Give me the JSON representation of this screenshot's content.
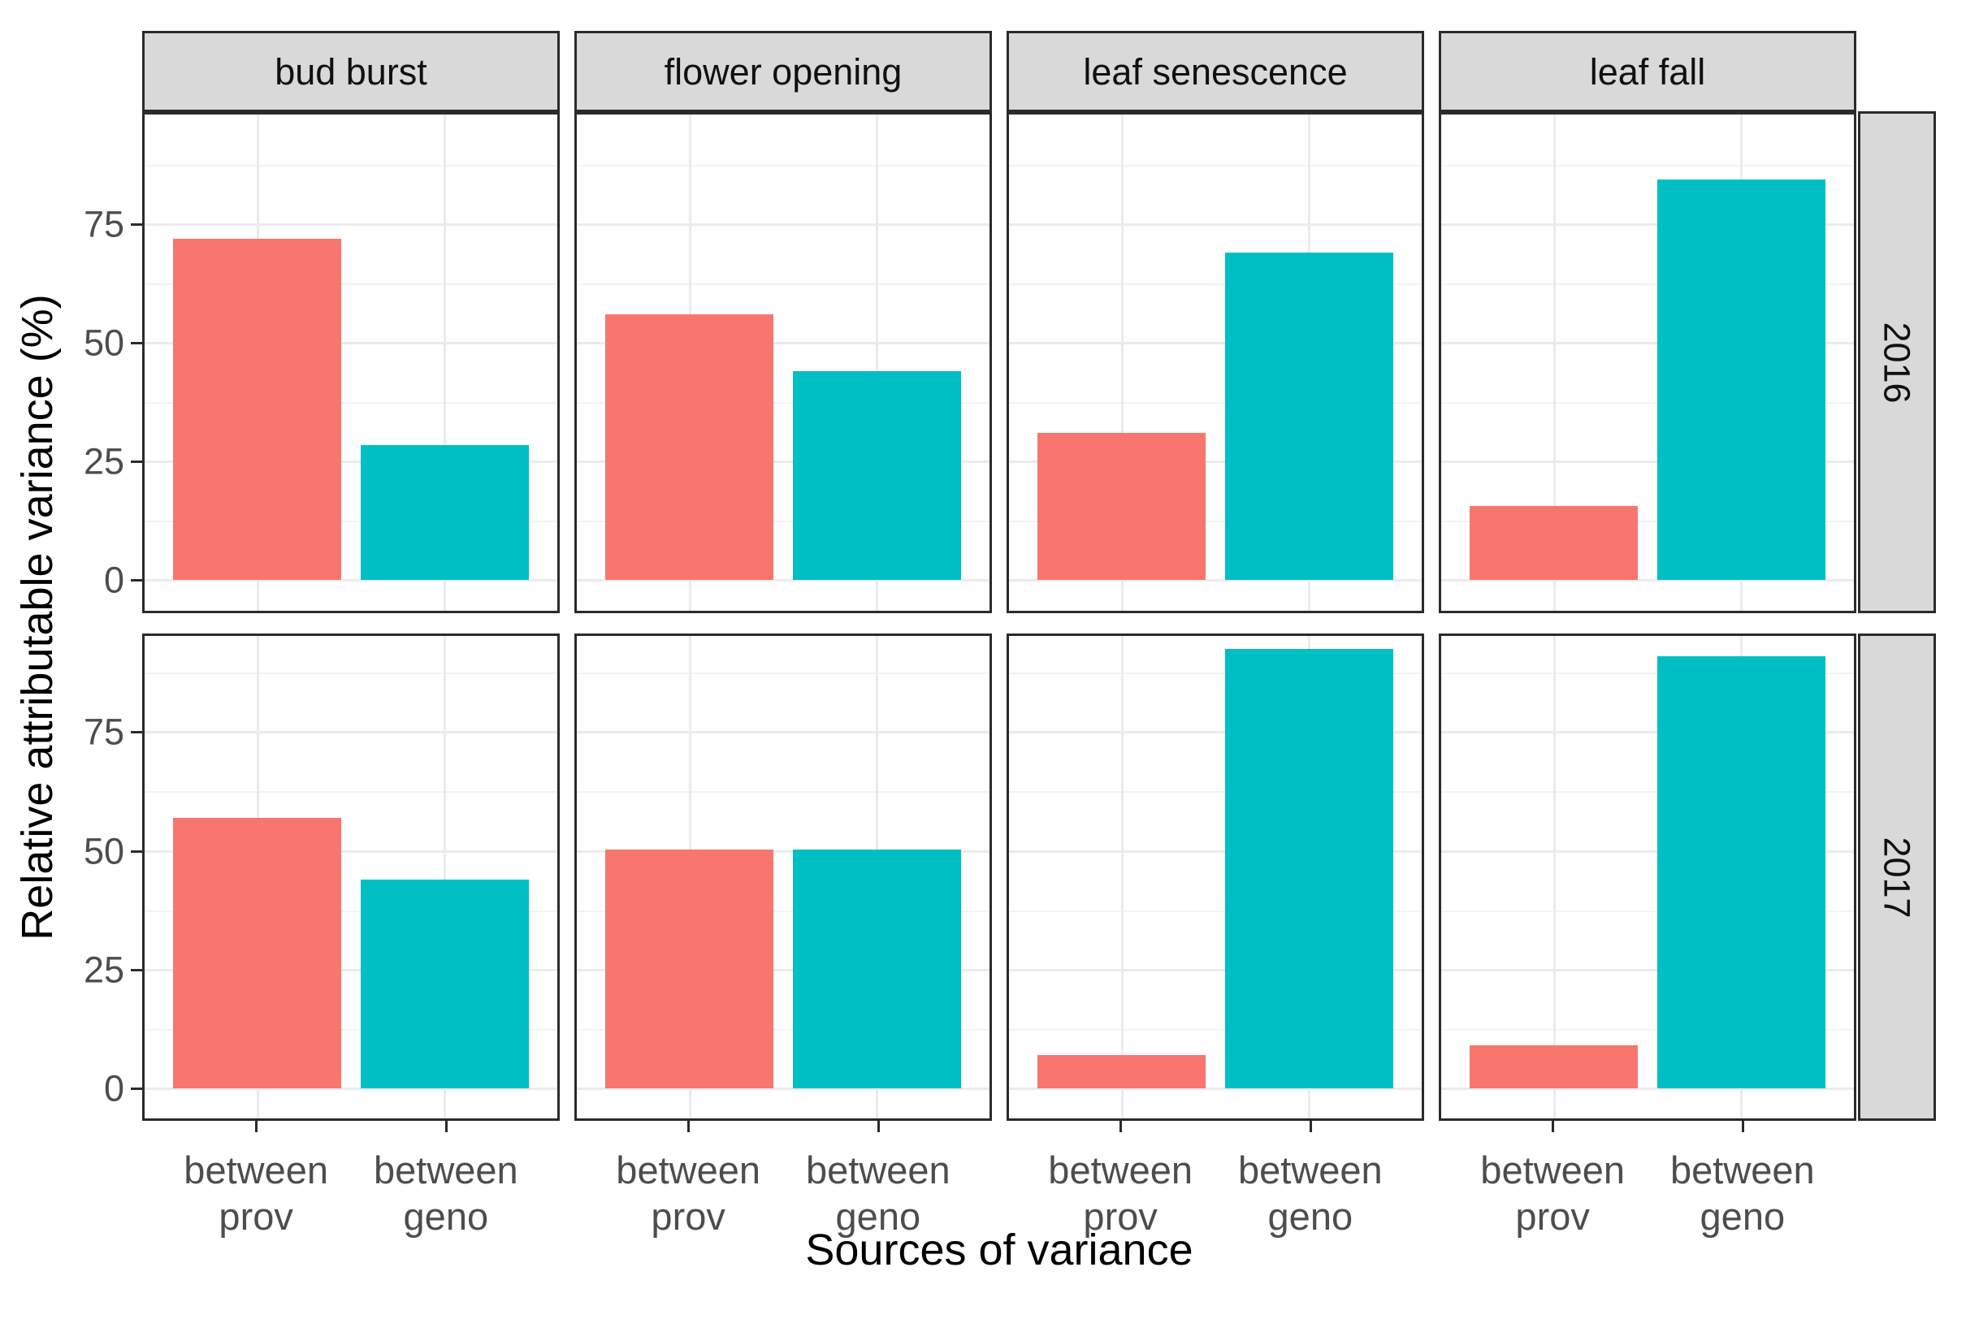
{
  "figure": {
    "x_axis_title": "Sources of variance",
    "y_axis_title": "Relative attributable variance (%)"
  },
  "chart_data": {
    "type": "bar",
    "title": "",
    "xlabel": "Sources of variance",
    "ylabel": "Relative attributable variance (%)",
    "facet_columns": [
      "bud burst",
      "flower opening",
      "leaf senescence",
      "leaf fall"
    ],
    "facet_rows": [
      "2016",
      "2017"
    ],
    "categories": [
      "between prov",
      "between geno"
    ],
    "category_label_lines": [
      [
        "between",
        "prov"
      ],
      [
        "between",
        "geno"
      ]
    ],
    "series": [
      {
        "name": "between prov",
        "color": "#F8766D"
      },
      {
        "name": "between geno",
        "color": "#00BFC4"
      }
    ],
    "values": {
      "2016": {
        "bud burst": [
          72,
          28.5
        ],
        "flower opening": [
          56,
          44
        ],
        "leaf senescence": [
          31,
          69
        ],
        "leaf fall": [
          15.5,
          84.5
        ]
      },
      "2017": {
        "bud burst": [
          57,
          44
        ],
        "flower opening": [
          50.3,
          50.2
        ],
        "leaf senescence": [
          7,
          92.5
        ],
        "leaf fall": [
          9,
          91
        ]
      }
    },
    "yticks": [
      0,
      25,
      50,
      75
    ],
    "ytick_labels": [
      "0",
      "25",
      "50",
      "75"
    ],
    "ylim": [
      0,
      97
    ],
    "grid": true,
    "legend": "none",
    "theme": {
      "bar_color_prov": "#F8766D",
      "bar_color_geno": "#00BFC4",
      "strip_background": "#D9D9D9",
      "panel_border": "#2B2B2B",
      "grid_major": "#EBEBEB",
      "grid_minor": "#F3F3F3",
      "tick_label_color": "#4D4D4D"
    }
  }
}
